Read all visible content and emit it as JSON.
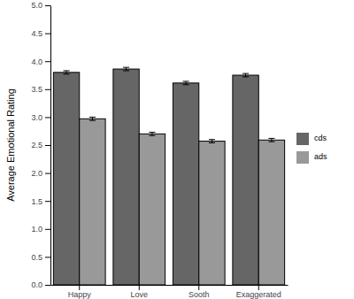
{
  "chart_data": {
    "type": "bar",
    "y_label": "Average Emotional Rating",
    "categories": [
      "Happy",
      "Love",
      "Sooth",
      "Exaggerated"
    ],
    "series": [
      {
        "name": "cds",
        "color": "#666666",
        "values": [
          3.8,
          3.86,
          3.61,
          3.75
        ],
        "errors": [
          0.03,
          0.03,
          0.03,
          0.03
        ]
      },
      {
        "name": "ads",
        "color": "#999999",
        "values": [
          2.97,
          2.7,
          2.57,
          2.59
        ],
        "errors": [
          0.03,
          0.03,
          0.03,
          0.03
        ]
      }
    ],
    "ylim": [
      0,
      5
    ],
    "yticks": [
      {
        "value": 0,
        "label": "0.0"
      },
      {
        "value": 0.5,
        "label": "0.5"
      },
      {
        "value": 1,
        "label": "1.0"
      },
      {
        "value": 1.5,
        "label": "1.5"
      },
      {
        "value": 2,
        "label": "2.0"
      },
      {
        "value": 2.5,
        "label": "2.5"
      },
      {
        "value": 3,
        "label": "3.0"
      },
      {
        "value": 3.5,
        "label": "3.5"
      },
      {
        "value": 4,
        "label": "4.0"
      },
      {
        "value": 4.5,
        "label": "4.5"
      },
      {
        "value": 5,
        "label": "5.0"
      }
    ],
    "grid": false,
    "legend": "right"
  }
}
